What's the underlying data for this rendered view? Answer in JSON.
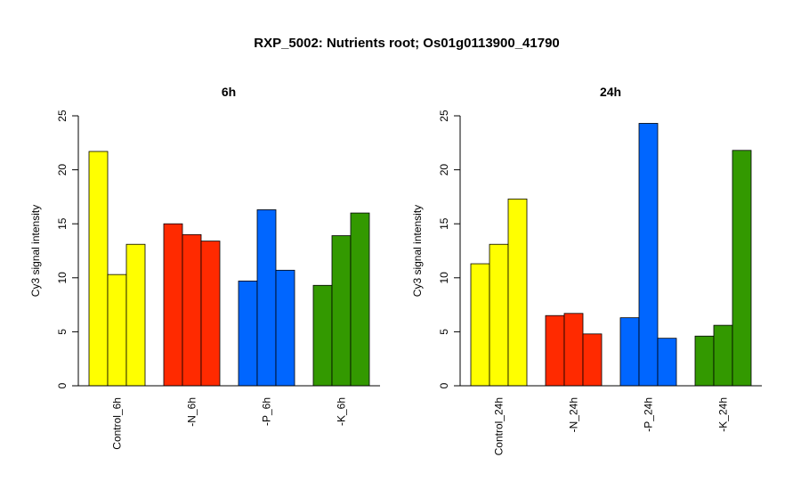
{
  "title": "RXP_5002: Nutrients root; Os01g0113900_41790",
  "chart_data": [
    {
      "type": "bar",
      "title": "6h",
      "ylabel": "Cy3 signal intensity",
      "ylim": [
        0,
        25
      ],
      "yticks": [
        0,
        5,
        10,
        15,
        20,
        25
      ],
      "groups": [
        {
          "label": "Control_6h",
          "color": "#ffff00",
          "values": [
            21.7,
            10.3,
            13.1
          ]
        },
        {
          "label": "-N_6h",
          "color": "#ff2a00",
          "values": [
            15.0,
            14.0,
            13.4
          ]
        },
        {
          "label": "-P_6h",
          "color": "#0066ff",
          "values": [
            9.7,
            16.3,
            10.7
          ]
        },
        {
          "label": "-K_6h",
          "color": "#339900",
          "values": [
            9.3,
            13.9,
            16.0
          ]
        }
      ]
    },
    {
      "type": "bar",
      "title": "24h",
      "ylabel": "Cy3 signal intensity",
      "ylim": [
        0,
        25
      ],
      "yticks": [
        0,
        5,
        10,
        15,
        20,
        25
      ],
      "groups": [
        {
          "label": "Control_24h",
          "color": "#ffff00",
          "values": [
            11.3,
            13.1,
            17.3
          ]
        },
        {
          "label": "-N_24h",
          "color": "#ff2a00",
          "values": [
            6.5,
            6.7,
            4.8
          ]
        },
        {
          "label": "-P_24h",
          "color": "#0066ff",
          "values": [
            6.3,
            24.3,
            4.4
          ]
        },
        {
          "label": "-K_24h",
          "color": "#339900",
          "values": [
            4.6,
            5.6,
            21.8
          ]
        }
      ]
    }
  ]
}
